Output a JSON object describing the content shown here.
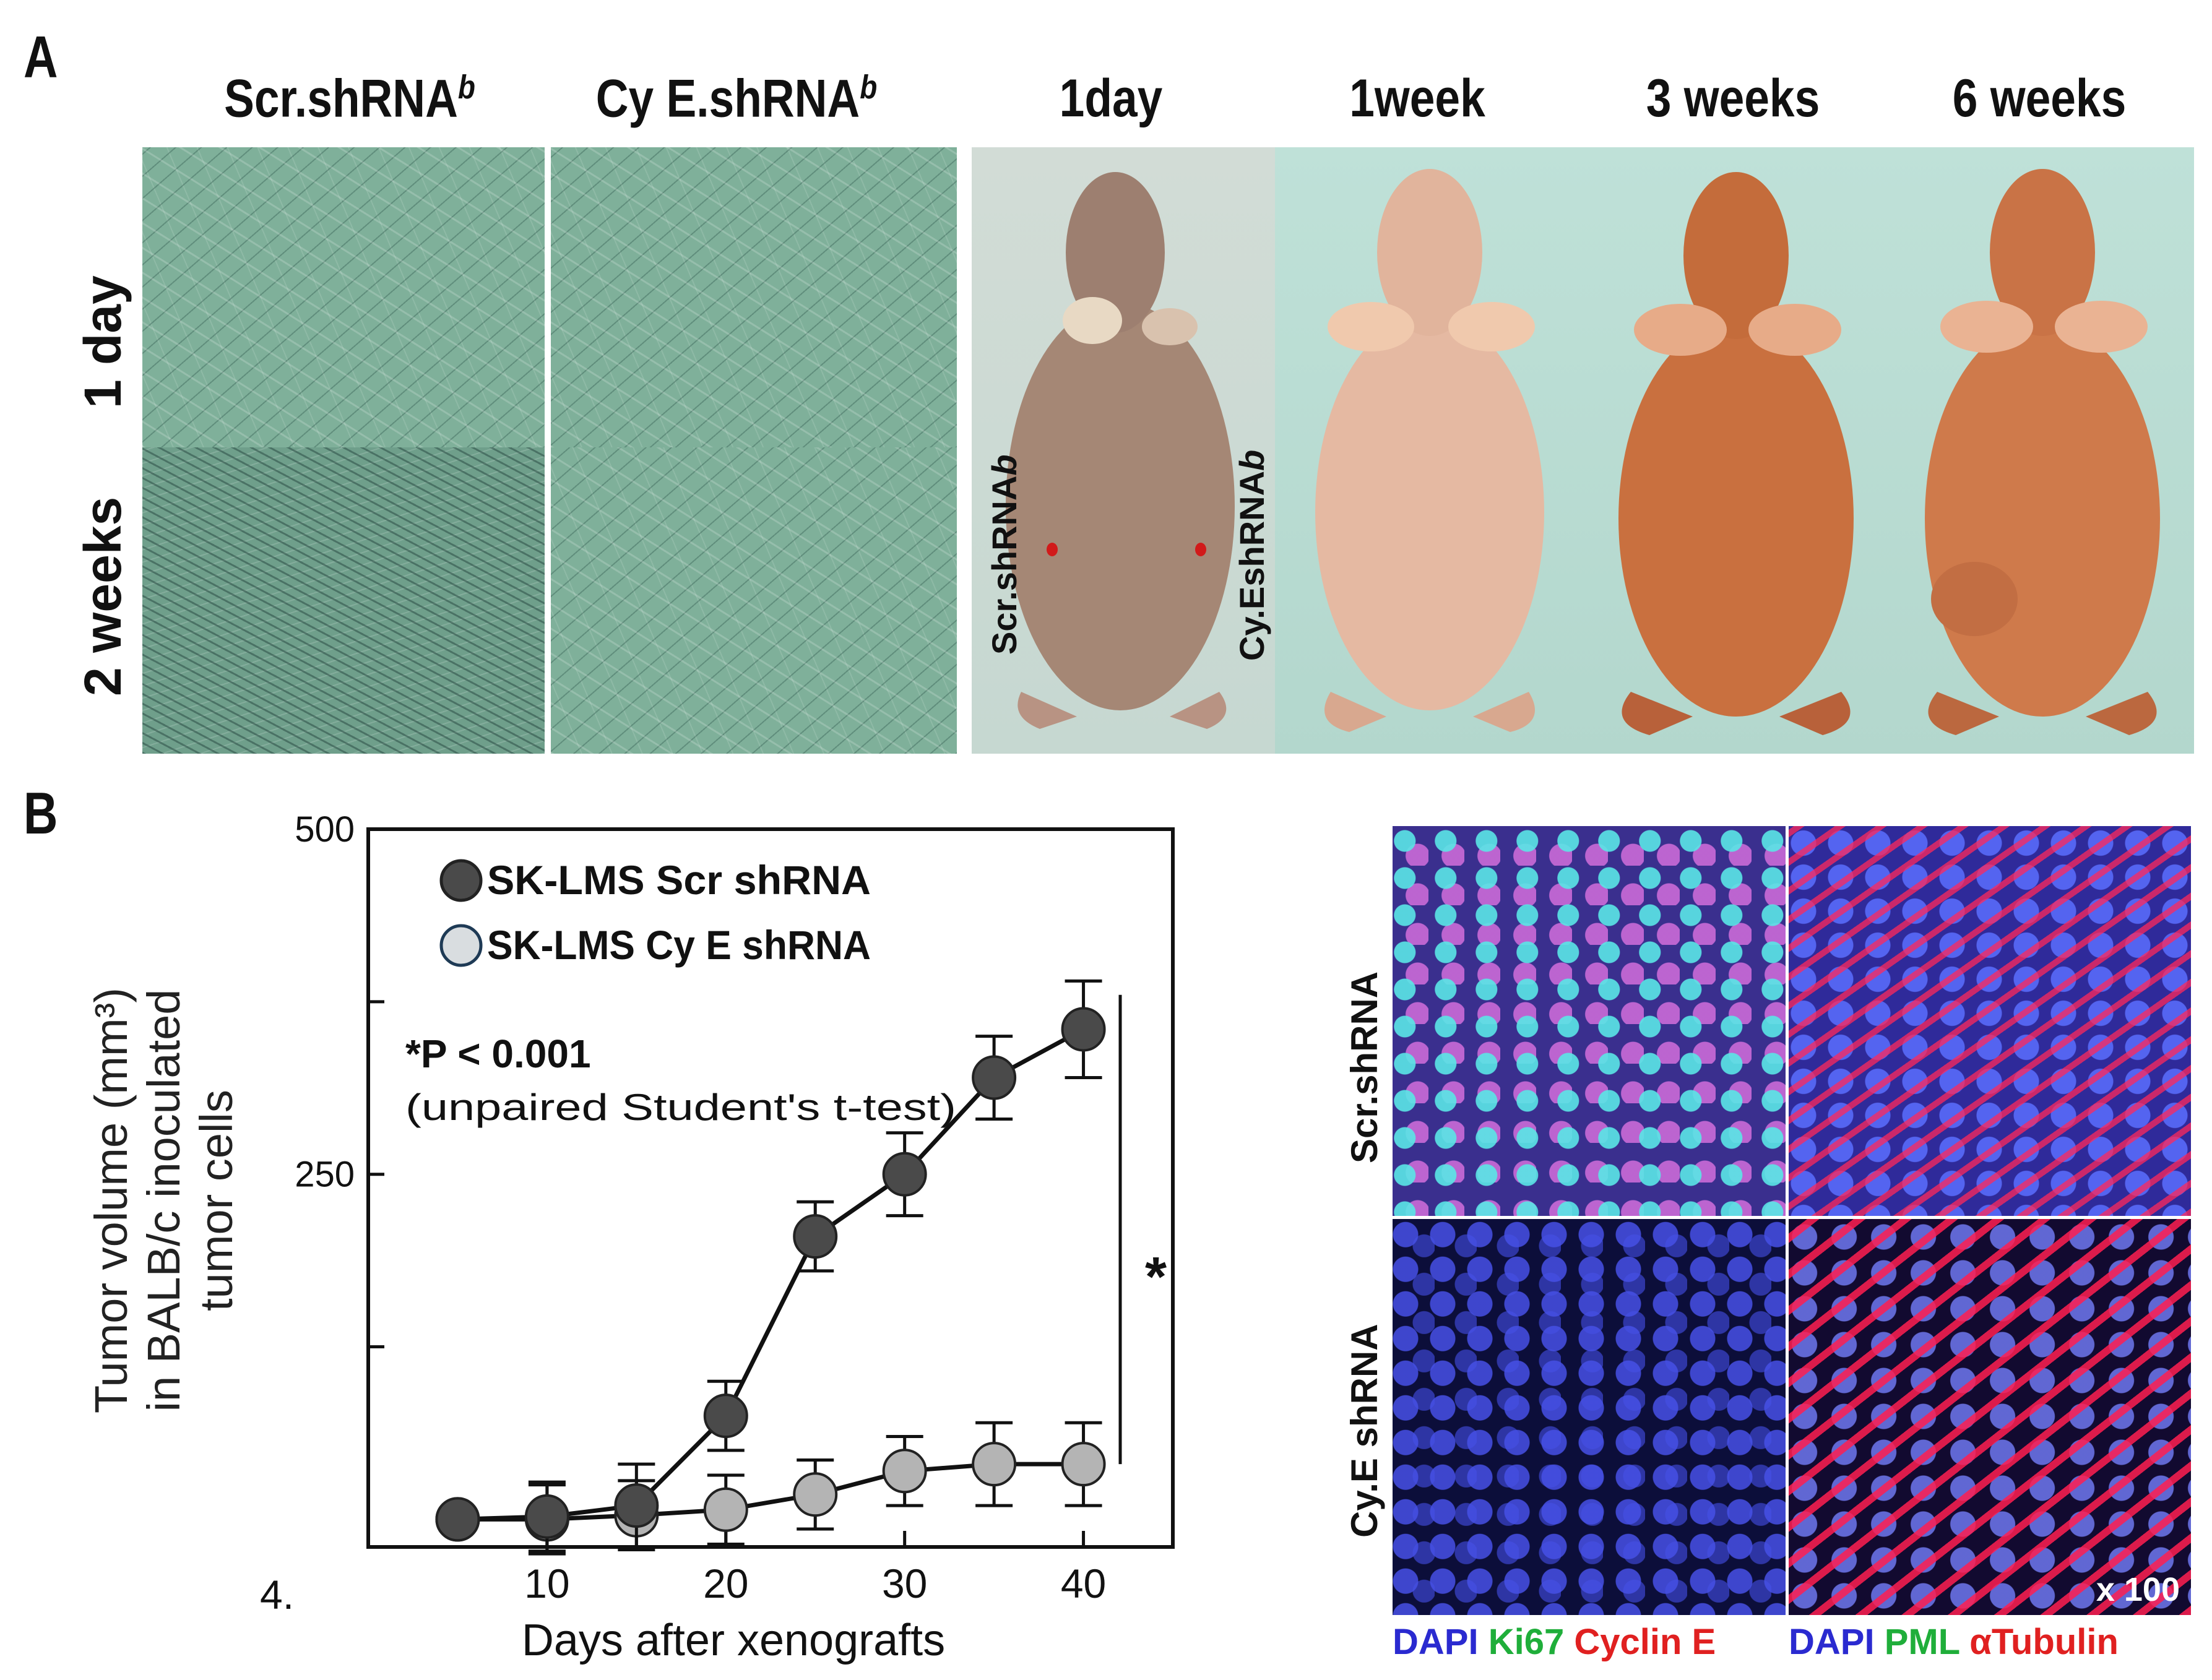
{
  "panel_a": {
    "letter": "A",
    "cell_headers": [
      {
        "text": "Scr.shRNA",
        "sup": "b"
      },
      {
        "text": "Cy E.shRNA",
        "sup": "b"
      }
    ],
    "row_labels": [
      "1 day",
      "2 weeks"
    ],
    "mouse_headers": [
      "1day",
      "1week",
      "3 weeks",
      "6 weeks"
    ],
    "mouse_side_labels": {
      "left": "Scr.shRNA",
      "left_sup": "b",
      "right": "Cy.EshRNA",
      "right_sup": "b"
    }
  },
  "panel_b": {
    "letter": "B",
    "plot_corner_label": "4.",
    "stat_note": {
      "line1": "*P < 0.001",
      "line2": "(unpaired Student's t-test)"
    },
    "significance_mark": "*",
    "fluor_row_labels": [
      "Scr.shRNA",
      "Cy.E shRNA"
    ],
    "stain_legend_left": [
      {
        "text": "DAPI",
        "color": "#2a2ad0"
      },
      {
        "text": "Ki67",
        "color": "#1fae3a"
      },
      {
        "text": "Cyclin E",
        "color": "#e02020"
      }
    ],
    "stain_legend_right": [
      {
        "text": "DAPI",
        "color": "#2a2ad0"
      },
      {
        "text": "PML",
        "color": "#1fae3a"
      },
      {
        "text": "αTubulin",
        "color": "#e02020"
      }
    ],
    "magnification": "x 100"
  },
  "chart_data": {
    "type": "line",
    "xlabel": "Days after xenografts",
    "ylabel_lines": [
      "Tumor volume (mm³)",
      "in BALB/c inoculated",
      "tumor cells"
    ],
    "x_ticks": [
      10,
      20,
      30,
      40
    ],
    "y_ticks": [
      250,
      500
    ],
    "y_minor_ticks": [
      125,
      375
    ],
    "xlim": [
      0,
      45
    ],
    "ylim": [
      -20,
      500
    ],
    "legend_position": "top-left",
    "series": [
      {
        "name": "SK-LMS Scr shRNA",
        "marker_color": "#4a4a4a",
        "x": [
          5,
          10,
          15,
          20,
          25,
          30,
          35,
          40
        ],
        "y": [
          0,
          2,
          10,
          75,
          205,
          250,
          320,
          355
        ],
        "err": [
          0,
          25,
          30,
          25,
          25,
          30,
          30,
          35
        ]
      },
      {
        "name": "SK-LMS Cy E shRNA",
        "marker_color": "#b4b4b4",
        "x": [
          5,
          10,
          15,
          20,
          25,
          30,
          35,
          40
        ],
        "y": [
          0,
          0,
          3,
          7,
          18,
          35,
          40,
          40
        ],
        "err": [
          0,
          25,
          25,
          25,
          25,
          25,
          30,
          30
        ]
      }
    ]
  }
}
